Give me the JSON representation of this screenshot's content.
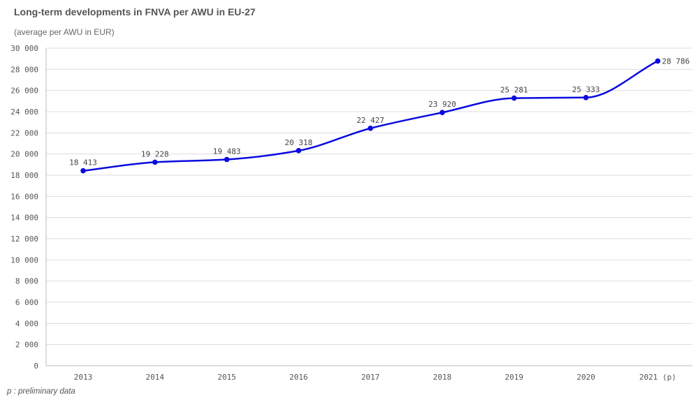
{
  "chart_data": {
    "type": "line",
    "title": "Long-term developments in FNVA per AWU in  EU-27",
    "subtitle": "(average per AWU in EUR)",
    "xlabel": "",
    "ylabel": "",
    "categories": [
      "2013",
      "2014",
      "2015",
      "2016",
      "2017",
      "2018",
      "2019",
      "2020",
      "2021 (p)"
    ],
    "series": [
      {
        "values": [
          18413,
          19228,
          19483,
          20318,
          22427,
          23920,
          25281,
          25333,
          28786
        ],
        "color": "#0a0ae0"
      }
    ],
    "data_labels": [
      "18 413",
      "19 228",
      "19 483",
      "20 318",
      "22 427",
      "23 920",
      "25 281",
      "25 333",
      "28 786"
    ],
    "ylim": [
      0,
      30000
    ],
    "yticks": [
      0,
      2000,
      4000,
      6000,
      8000,
      10000,
      12000,
      14000,
      16000,
      18000,
      20000,
      22000,
      24000,
      26000,
      28000,
      30000
    ],
    "ytick_labels": [
      "0",
      "2 000",
      "4 000",
      "6 000",
      "8 000",
      "10 000",
      "12 000",
      "14 000",
      "16 000",
      "18 000",
      "20 000",
      "22 000",
      "24 000",
      "26 000",
      "28 000",
      "30 000"
    ],
    "grid": true,
    "legend": "none",
    "colors": {
      "grid": "#dddddd",
      "axis": "#bbbbbb",
      "line": "#0a0ae0"
    }
  },
  "footnote": "p : preliminary data"
}
